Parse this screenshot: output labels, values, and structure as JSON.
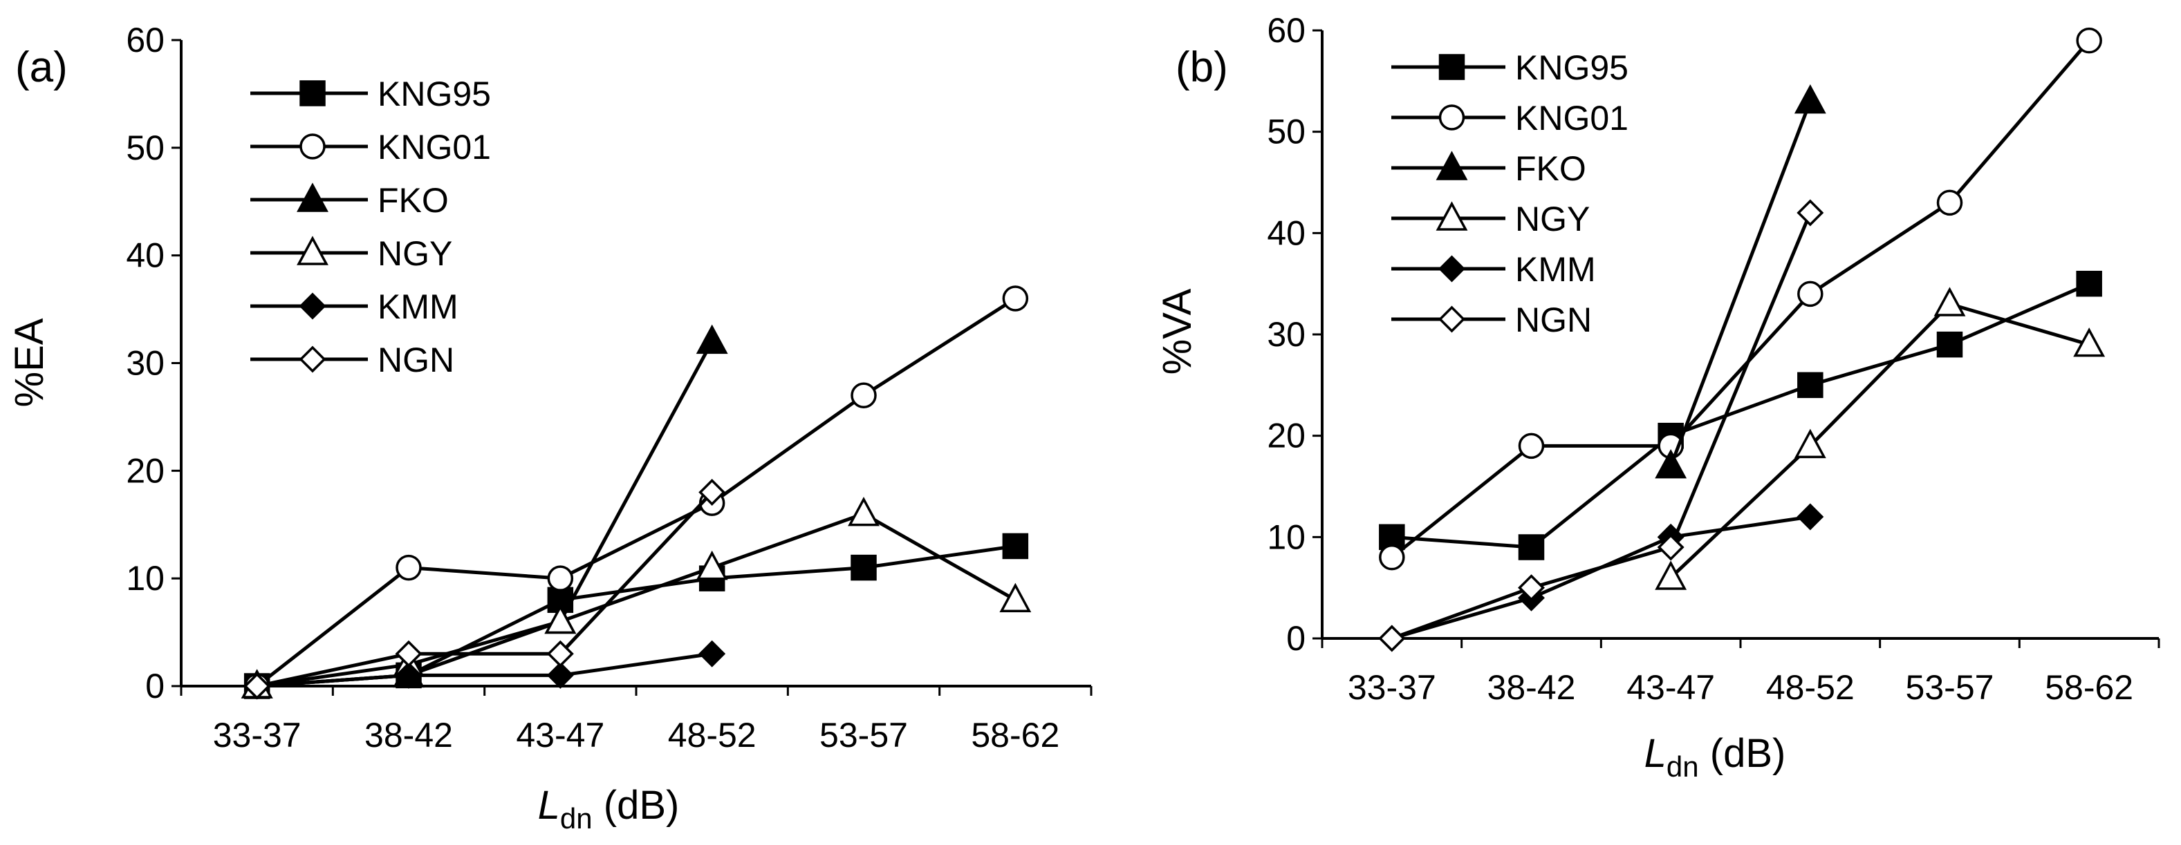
{
  "chart_data": [
    {
      "type": "line",
      "panel_label": "(a)",
      "ylabel": "%EA",
      "xlabel_main": "L",
      "xlabel_sub": "dn",
      "xlabel_unit": "(dB)",
      "categories": [
        "33-37",
        "38-42",
        "43-47",
        "48-52",
        "53-57",
        "58-62"
      ],
      "ylim": [
        0,
        60
      ],
      "yticks": [
        0,
        10,
        20,
        30,
        40,
        50,
        60
      ],
      "legend_position": "top-left",
      "series": [
        {
          "name": "KNG95",
          "marker": "square",
          "filled": true,
          "values": [
            0,
            1,
            8,
            10,
            11,
            13
          ]
        },
        {
          "name": "KNG01",
          "marker": "circle",
          "filled": false,
          "values": [
            0,
            11,
            10,
            17,
            27,
            36
          ]
        },
        {
          "name": "FKO",
          "marker": "triangle",
          "filled": true,
          "values": [
            0,
            1,
            6,
            32,
            null,
            null
          ]
        },
        {
          "name": "NGY",
          "marker": "triangle",
          "filled": false,
          "values": [
            0,
            2,
            6,
            11,
            16,
            8
          ]
        },
        {
          "name": "KMM",
          "marker": "diamond",
          "filled": true,
          "values": [
            0,
            1,
            1,
            3,
            null,
            null
          ]
        },
        {
          "name": "NGN",
          "marker": "diamond",
          "filled": false,
          "values": [
            0,
            3,
            3,
            18,
            null,
            null
          ]
        }
      ]
    },
    {
      "type": "line",
      "panel_label": "(b)",
      "ylabel": "%VA",
      "xlabel_main": "L",
      "xlabel_sub": "dn",
      "xlabel_unit": "(dB)",
      "categories": [
        "33-37",
        "38-42",
        "43-47",
        "48-52",
        "53-57",
        "58-62"
      ],
      "ylim": [
        0,
        60
      ],
      "yticks": [
        0,
        10,
        20,
        30,
        40,
        50,
        60
      ],
      "legend_position": "top-left",
      "series": [
        {
          "name": "KNG95",
          "marker": "square",
          "filled": true,
          "values": [
            10,
            9,
            20,
            25,
            29,
            35
          ]
        },
        {
          "name": "KNG01",
          "marker": "circle",
          "filled": false,
          "values": [
            8,
            19,
            19,
            34,
            43,
            59
          ]
        },
        {
          "name": "FKO",
          "marker": "triangle",
          "filled": true,
          "values": [
            null,
            null,
            17,
            53,
            null,
            null
          ]
        },
        {
          "name": "NGY",
          "marker": "triangle",
          "filled": false,
          "values": [
            null,
            null,
            6,
            19,
            33,
            29
          ]
        },
        {
          "name": "KMM",
          "marker": "diamond",
          "filled": true,
          "values": [
            0,
            4,
            10,
            12,
            null,
            null
          ]
        },
        {
          "name": "NGN",
          "marker": "diamond",
          "filled": false,
          "values": [
            0,
            5,
            9,
            42,
            null,
            null
          ]
        }
      ]
    }
  ]
}
